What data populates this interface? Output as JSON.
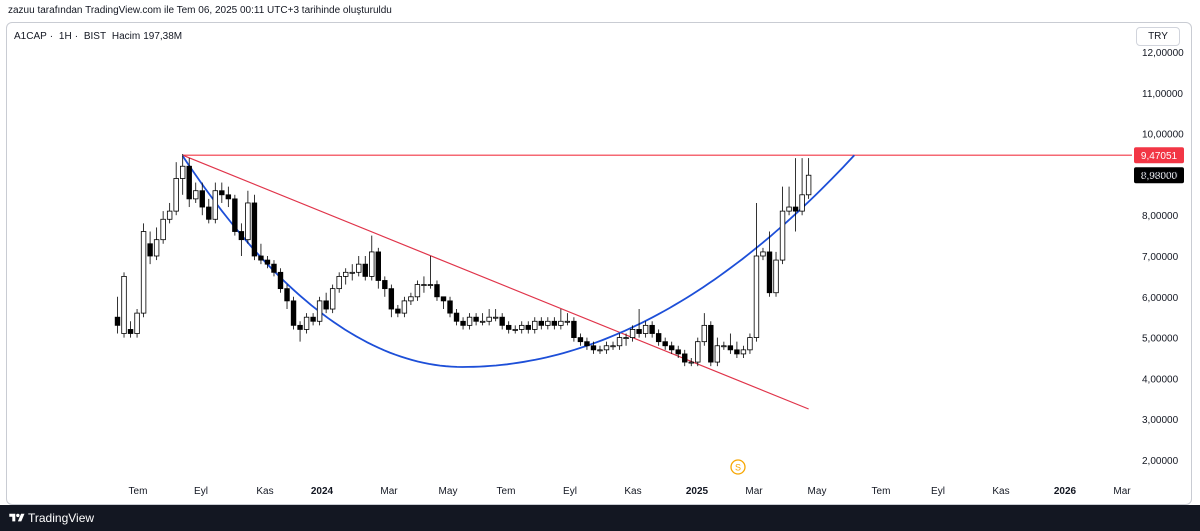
{
  "header": {
    "attribution": "zazuu tarafından TradingView.com ile Tem 06, 2025 00:11 UTC+3 tarihinde oluşturuldu"
  },
  "legend": {
    "symbol": "A1CAP",
    "separator": "·",
    "interval": "1H",
    "exchange": "BIST",
    "volume_label": "Hacim",
    "volume_value": "197,38M"
  },
  "currency_button": "TRY",
  "footer": {
    "brand": "TradingView"
  },
  "event_marker": {
    "symbol": "S",
    "color": "#f7a600"
  },
  "colors": {
    "up_fill": "#ffffff",
    "down_fill": "#000000",
    "candle_stroke": "#000000",
    "resistance": "#f23645",
    "trendline": "#e0344a",
    "curve": "#1d4fd8",
    "last_price_bg": "#000000"
  },
  "chart_data": {
    "type": "candlestick",
    "instrument": "A1CAP · 1H · BIST",
    "ylim": [
      1.5,
      12.5
    ],
    "y_ticks": [
      "2,00000",
      "3,00000",
      "4,00000",
      "5,00000",
      "6,00000",
      "7,00000",
      "8,00000",
      "9,00000",
      "10,00000",
      "11,00000",
      "12,00000"
    ],
    "y_tick_values": [
      2,
      3,
      4,
      5,
      6,
      7,
      8,
      9,
      10,
      11,
      12
    ],
    "x_ticks": [
      {
        "label": "Tem",
        "bold": false
      },
      {
        "label": "Eyl",
        "bold": false
      },
      {
        "label": "Kas",
        "bold": false
      },
      {
        "label": "2024",
        "bold": true
      },
      {
        "label": "Mar",
        "bold": false
      },
      {
        "label": "May",
        "bold": false
      },
      {
        "label": "Tem",
        "bold": false
      },
      {
        "label": "Eyl",
        "bold": false
      },
      {
        "label": "Kas",
        "bold": false
      },
      {
        "label": "2025",
        "bold": true
      },
      {
        "label": "Mar",
        "bold": false
      },
      {
        "label": "May",
        "bold": false
      },
      {
        "label": "Tem",
        "bold": false
      },
      {
        "label": "Eyl",
        "bold": false
      },
      {
        "label": "Kas",
        "bold": false
      },
      {
        "label": "2026",
        "bold": true
      },
      {
        "label": "Mar",
        "bold": false
      }
    ],
    "candles": [
      [
        5.5,
        5.3,
        5.1,
        6.0
      ],
      [
        5.1,
        6.5,
        5.0,
        6.6
      ],
      [
        5.2,
        5.1,
        5.0,
        5.4
      ],
      [
        5.1,
        5.6,
        5.0,
        5.7
      ],
      [
        5.6,
        7.6,
        5.5,
        7.8
      ],
      [
        7.3,
        7.0,
        6.8,
        7.6
      ],
      [
        7.0,
        7.4,
        6.9,
        7.7
      ],
      [
        7.4,
        7.9,
        7.3,
        8.1
      ],
      [
        7.9,
        8.1,
        7.8,
        8.3
      ],
      [
        8.1,
        8.9,
        8.0,
        9.3
      ],
      [
        8.9,
        9.2,
        8.5,
        9.5
      ],
      [
        9.2,
        8.4,
        8.2,
        9.4
      ],
      [
        8.4,
        8.6,
        8.3,
        8.8
      ],
      [
        8.6,
        8.2,
        8.0,
        8.8
      ],
      [
        8.2,
        7.9,
        7.8,
        8.4
      ],
      [
        7.9,
        8.6,
        7.8,
        8.8
      ],
      [
        8.6,
        8.5,
        8.3,
        8.8
      ],
      [
        8.5,
        8.4,
        8.2,
        8.7
      ],
      [
        8.4,
        7.6,
        7.5,
        8.5
      ],
      [
        7.6,
        7.4,
        7.0,
        7.8
      ],
      [
        7.4,
        8.3,
        7.3,
        8.6
      ],
      [
        8.3,
        7.0,
        6.9,
        8.5
      ],
      [
        7.0,
        6.9,
        6.8,
        7.3
      ],
      [
        6.9,
        6.8,
        6.7,
        7.0
      ],
      [
        6.8,
        6.6,
        6.5,
        6.9
      ],
      [
        6.6,
        6.2,
        6.1,
        6.7
      ],
      [
        6.2,
        5.9,
        5.7,
        6.3
      ],
      [
        5.9,
        5.3,
        5.2,
        6.0
      ],
      [
        5.3,
        5.2,
        4.9,
        5.4
      ],
      [
        5.2,
        5.5,
        5.1,
        5.6
      ],
      [
        5.5,
        5.4,
        5.3,
        5.6
      ],
      [
        5.4,
        5.9,
        5.3,
        6.0
      ],
      [
        5.9,
        5.7,
        5.6,
        6.1
      ],
      [
        5.7,
        6.2,
        5.6,
        6.3
      ],
      [
        6.2,
        6.5,
        6.1,
        6.6
      ],
      [
        6.5,
        6.6,
        6.3,
        6.7
      ],
      [
        6.6,
        6.6,
        6.4,
        6.8
      ],
      [
        6.6,
        6.8,
        6.5,
        7.0
      ],
      [
        6.8,
        6.5,
        6.4,
        7.0
      ],
      [
        6.5,
        7.1,
        6.4,
        7.5
      ],
      [
        7.1,
        6.4,
        6.2,
        7.2
      ],
      [
        6.4,
        6.2,
        6.0,
        6.5
      ],
      [
        6.2,
        5.7,
        5.5,
        6.3
      ],
      [
        5.7,
        5.6,
        5.5,
        5.8
      ],
      [
        5.6,
        5.9,
        5.5,
        6.0
      ],
      [
        5.9,
        6.0,
        5.8,
        6.1
      ],
      [
        6.0,
        6.3,
        5.9,
        6.4
      ],
      [
        6.3,
        6.3,
        6.1,
        6.5
      ],
      [
        6.3,
        6.3,
        6.2,
        7.0
      ],
      [
        6.3,
        6.0,
        5.9,
        6.4
      ],
      [
        6.0,
        5.9,
        5.7,
        6.0
      ],
      [
        5.9,
        5.6,
        5.5,
        6.0
      ],
      [
        5.6,
        5.4,
        5.3,
        5.7
      ],
      [
        5.4,
        5.3,
        5.2,
        5.5
      ],
      [
        5.3,
        5.5,
        5.2,
        5.6
      ],
      [
        5.5,
        5.4,
        5.3,
        5.6
      ],
      [
        5.4,
        5.4,
        5.3,
        5.6
      ],
      [
        5.4,
        5.5,
        5.3,
        5.7
      ],
      [
        5.5,
        5.5,
        5.4,
        5.7
      ],
      [
        5.5,
        5.3,
        5.2,
        5.6
      ],
      [
        5.3,
        5.2,
        5.1,
        5.4
      ],
      [
        5.2,
        5.2,
        5.1,
        5.3
      ],
      [
        5.2,
        5.3,
        5.1,
        5.4
      ],
      [
        5.3,
        5.2,
        5.1,
        5.4
      ],
      [
        5.2,
        5.4,
        5.1,
        5.5
      ],
      [
        5.4,
        5.3,
        5.2,
        5.5
      ],
      [
        5.3,
        5.4,
        5.2,
        5.5
      ],
      [
        5.4,
        5.3,
        5.2,
        5.5
      ],
      [
        5.3,
        5.4,
        5.2,
        5.7
      ],
      [
        5.4,
        5.4,
        5.3,
        5.6
      ],
      [
        5.4,
        5.0,
        4.9,
        5.5
      ],
      [
        5.0,
        4.9,
        4.8,
        5.1
      ],
      [
        4.9,
        4.8,
        4.7,
        5.0
      ],
      [
        4.8,
        4.7,
        4.6,
        4.9
      ],
      [
        4.7,
        4.7,
        4.6,
        4.8
      ],
      [
        4.7,
        4.8,
        4.6,
        4.9
      ],
      [
        4.8,
        4.8,
        4.7,
        4.9
      ],
      [
        4.8,
        5.0,
        4.7,
        5.1
      ],
      [
        5.0,
        5.0,
        4.8,
        5.1
      ],
      [
        5.0,
        5.2,
        4.9,
        5.3
      ],
      [
        5.2,
        5.1,
        5.0,
        5.7
      ],
      [
        5.1,
        5.3,
        5.0,
        5.4
      ],
      [
        5.3,
        5.1,
        5.0,
        5.4
      ],
      [
        5.1,
        4.9,
        4.8,
        5.2
      ],
      [
        4.9,
        4.8,
        4.7,
        5.0
      ],
      [
        4.8,
        4.7,
        4.6,
        4.9
      ],
      [
        4.7,
        4.6,
        4.5,
        4.8
      ],
      [
        4.6,
        4.4,
        4.3,
        4.7
      ],
      [
        4.4,
        4.4,
        4.3,
        4.5
      ],
      [
        4.4,
        4.9,
        4.3,
        5.0
      ],
      [
        4.9,
        5.3,
        4.8,
        5.6
      ],
      [
        5.3,
        4.4,
        4.3,
        5.4
      ],
      [
        4.4,
        4.8,
        4.3,
        5.0
      ],
      [
        4.8,
        4.8,
        4.7,
        4.9
      ],
      [
        4.8,
        4.7,
        4.6,
        5.1
      ],
      [
        4.7,
        4.6,
        4.5,
        4.9
      ],
      [
        4.6,
        4.7,
        4.5,
        4.8
      ],
      [
        4.7,
        5.0,
        4.6,
        5.1
      ],
      [
        5.0,
        7.0,
        4.9,
        8.3
      ],
      [
        7.0,
        7.1,
        6.9,
        7.2
      ],
      [
        7.1,
        6.1,
        6.0,
        7.6
      ],
      [
        6.1,
        6.9,
        6.0,
        7.1
      ],
      [
        6.9,
        8.1,
        6.8,
        8.7
      ],
      [
        8.1,
        8.2,
        8.0,
        8.7
      ],
      [
        8.2,
        8.1,
        7.6,
        9.4
      ],
      [
        8.1,
        8.5,
        8.0,
        9.4
      ],
      [
        8.5,
        8.98,
        8.4,
        9.4
      ]
    ],
    "resistance_level": 9.47051,
    "resistance_label": "9,47051",
    "last_price": 8.98,
    "last_price_label": "8,98000",
    "trendline": {
      "from": {
        "index": 10,
        "price": 9.47
      },
      "to": {
        "index": 106,
        "price": 3.25
      }
    },
    "cup_curve": {
      "start": {
        "index": 10,
        "price": 9.45
      },
      "bottom": {
        "index": 53,
        "price": 4.28
      },
      "end": {
        "index": 113,
        "price": 9.47
      }
    }
  }
}
